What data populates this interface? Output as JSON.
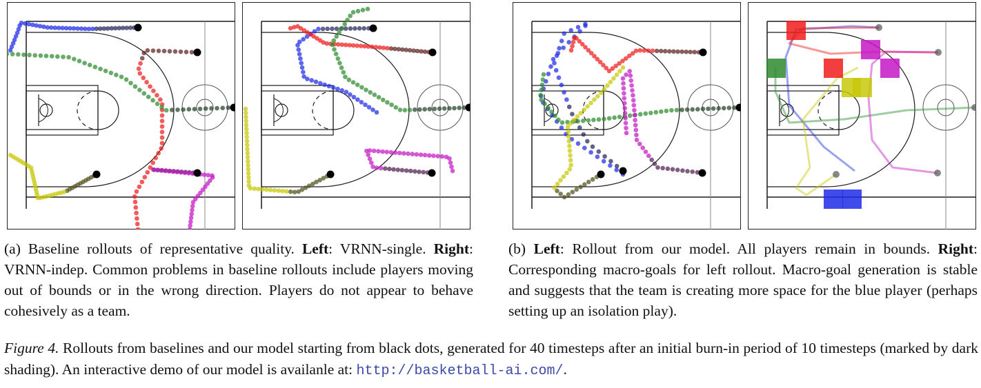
{
  "colors": {
    "blue": "#1f2be8",
    "red": "#f01c1c",
    "green": "#2e8b2e",
    "yellow": "#c8c80a",
    "magenta": "#c418c4",
    "court_line": "#1a1a1a",
    "start_dot": "#000000"
  },
  "panels": [
    {
      "name": "VRNN-single"
    },
    {
      "name": "VRNN-indep"
    },
    {
      "name": "our-model-rollout"
    },
    {
      "name": "macro-goals"
    }
  ],
  "caption_a": {
    "tag": "(a)",
    "sentence1": "Baseline rollouts of representative quality.",
    "left_label": "Left",
    "left_text": ": VRNN-single.",
    "right_label": "Right",
    "right_text": ": VRNN-indep. Common problems in baseline rollouts include players moving out of bounds or in the wrong direction. Players do not appear to behave cohesively as a team."
  },
  "caption_b": {
    "tag": "(b)",
    "left_label": "Left",
    "left_text": ": Rollout from our model. All players remain in bounds.",
    "right_label": "Right",
    "right_text": ": Corresponding macro-goals for left rollout. Macro-goal generation is stable and suggests that the team is creating more space for the blue player (perhaps setting up an isolation play)."
  },
  "figure_caption": {
    "label": "Figure 4.",
    "text": " Rollouts from baselines and our model starting from black dots, generated for 40 timesteps after an initial burn-in period of 10 timesteps (marked by dark shading). An interactive demo of our model is availanle at: ",
    "url": "http://basketball-ai.com/",
    "end": "."
  }
}
